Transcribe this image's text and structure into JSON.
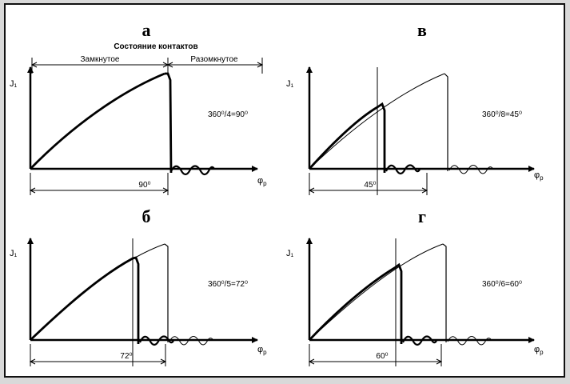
{
  "header_caption": "Состояние контактов",
  "state_closed": "Замкнутое",
  "state_open": "Разомкнутое",
  "y_axis_label": "J₁",
  "x_axis_label": "φ",
  "x_axis_subscript": "p",
  "panels": [
    {
      "id": "a",
      "letter": "а",
      "ratio": "360⁰/4=90⁰",
      "angle_label": "90⁰"
    },
    {
      "id": "v",
      "letter": "в",
      "ratio": "360⁰/8=45⁰",
      "angle_label": "45⁰"
    },
    {
      "id": "b",
      "letter": "б",
      "ratio": "360⁰/5=72⁰",
      "angle_label": "72⁰"
    },
    {
      "id": "g",
      "letter": "г",
      "ratio": "360⁰/6=60⁰",
      "angle_label": "60⁰"
    }
  ]
}
